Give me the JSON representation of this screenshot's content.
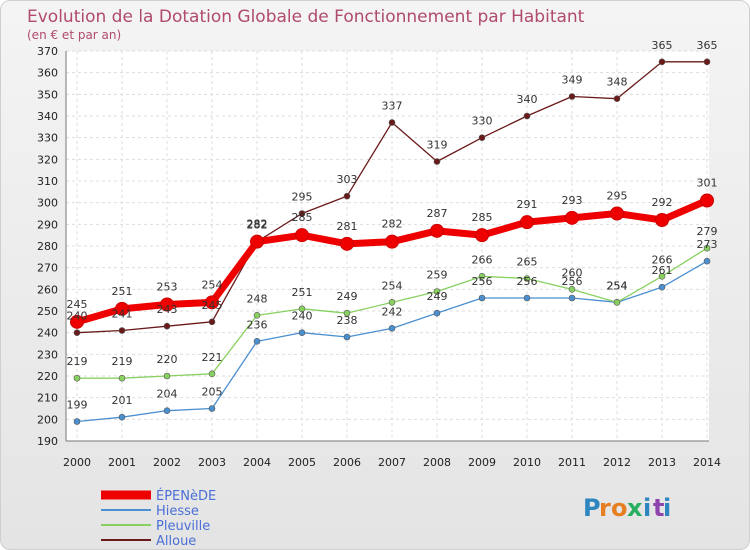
{
  "chart_data": {
    "type": "line",
    "title": "Evolution de la Dotation Globale de Fonctionnement par Habitant",
    "subtitle": "(en € et par an)",
    "xlabel": "",
    "ylabel": "",
    "x": [
      "2000",
      "2001",
      "2002",
      "2003",
      "2004",
      "2005",
      "2006",
      "2007",
      "2008",
      "2009",
      "2010",
      "2011",
      "2012",
      "2013",
      "2014"
    ],
    "ylim": [
      190,
      370
    ],
    "yticks": [
      190,
      200,
      210,
      220,
      230,
      240,
      250,
      260,
      270,
      280,
      290,
      300,
      310,
      320,
      330,
      340,
      350,
      360,
      370
    ],
    "grid": true,
    "legend_position": "bottom-left",
    "series": [
      {
        "name": "Alloue",
        "color": "#6b1a1a",
        "values": [
          240,
          241,
          243,
          245,
          282,
          295,
          303,
          337,
          319,
          330,
          340,
          349,
          348,
          365,
          365
        ]
      },
      {
        "name": "Hiesse",
        "color": "#4a8fcf",
        "values": [
          199,
          201,
          204,
          205,
          236,
          240,
          238,
          242,
          249,
          256,
          256,
          256,
          254,
          261,
          273
        ]
      },
      {
        "name": "Pleuville",
        "color": "#88d060",
        "values": [
          219,
          219,
          220,
          221,
          248,
          251,
          249,
          254,
          259,
          266,
          265,
          260,
          254,
          266,
          279
        ]
      },
      {
        "name": "ÉPENèDE",
        "color": "#ee0000",
        "values": [
          245,
          251,
          253,
          254,
          282,
          285,
          281,
          282,
          287,
          285,
          291,
          293,
          295,
          292,
          301
        ]
      }
    ],
    "legend_order": [
      "ÉPENèDE",
      "Hiesse",
      "Pleuville",
      "Alloue"
    ]
  },
  "logo": {
    "letters": [
      "P",
      "r",
      "o",
      "x",
      "i",
      "t",
      "i"
    ],
    "colors": [
      "#2e86c1",
      "#e67e22",
      "#e67e22",
      "#27ae60",
      "#2e86c1",
      "#8e44ad",
      "#2e86c1"
    ]
  }
}
